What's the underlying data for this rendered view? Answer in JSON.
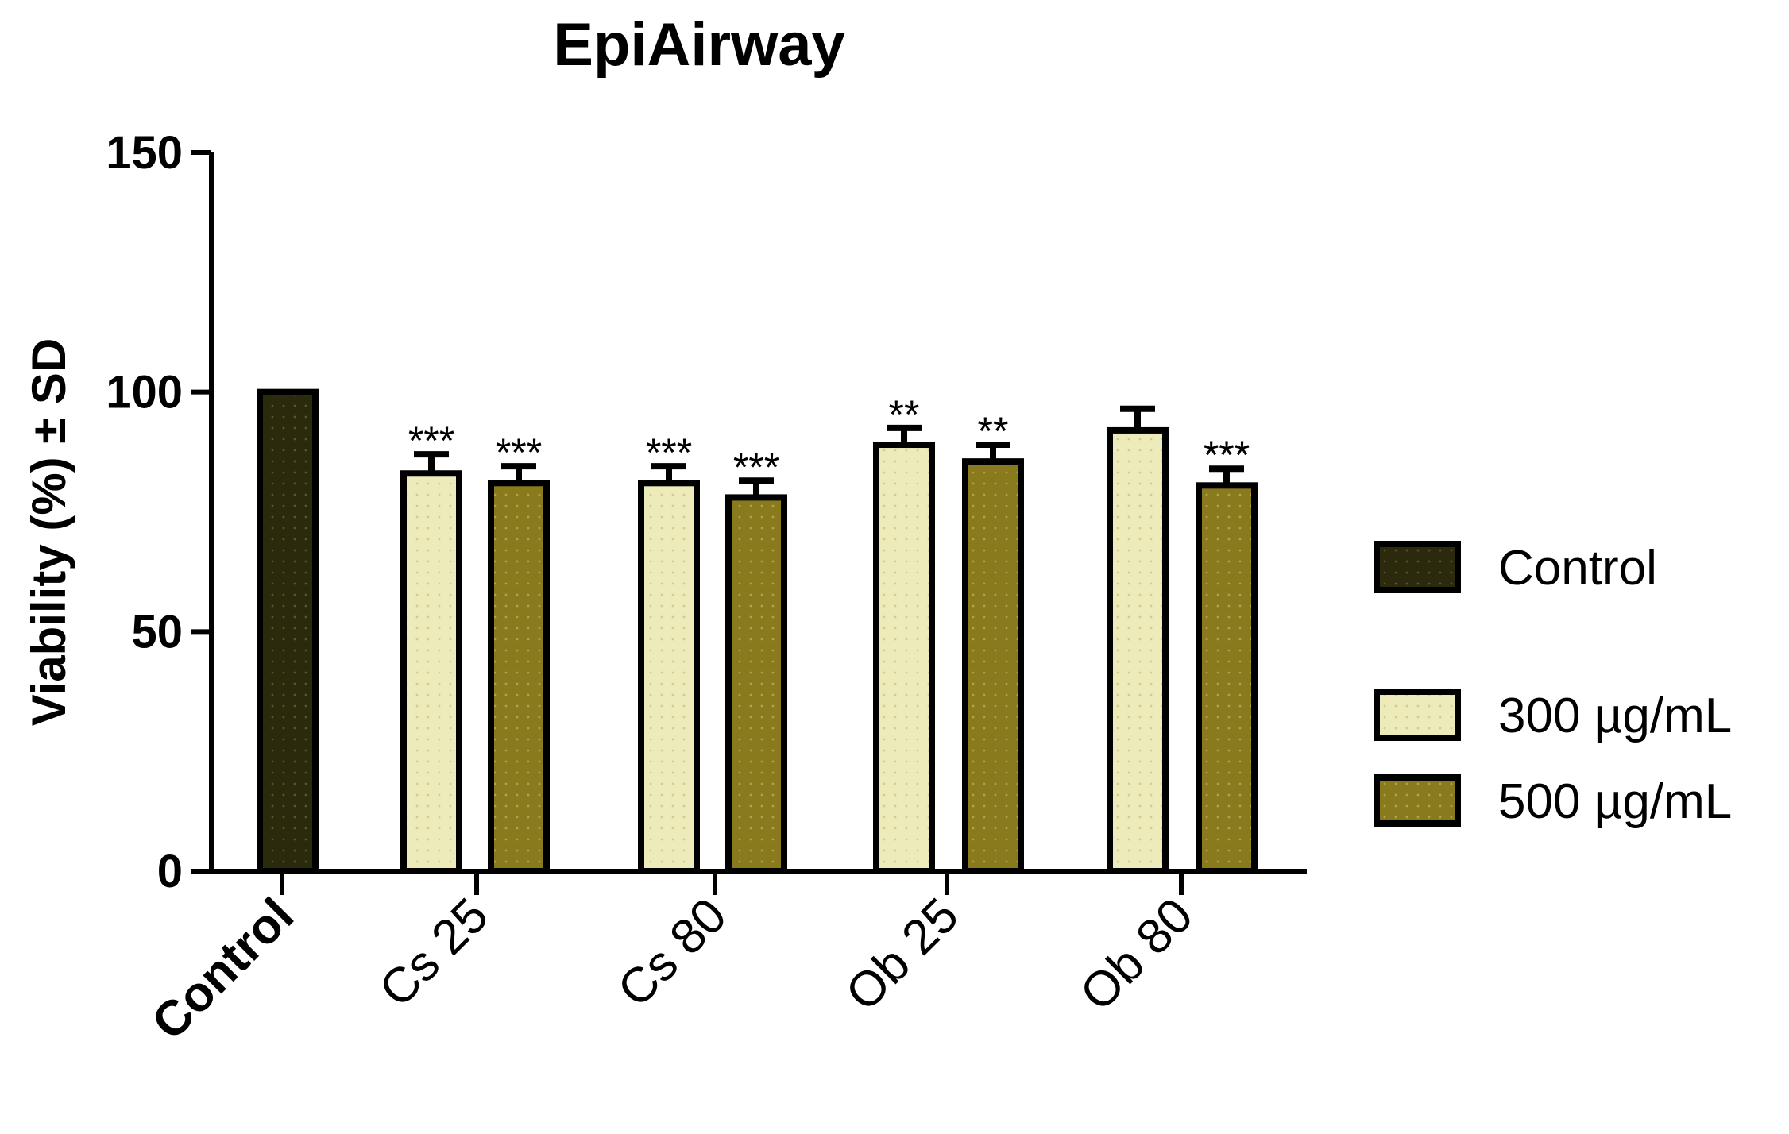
{
  "chart_data": {
    "type": "bar",
    "title": "EpiAirway",
    "ylabel": "Viability (%) ± SD",
    "xlabel": "",
    "ylim": [
      0,
      150
    ],
    "yticks": [
      0,
      50,
      100,
      150
    ],
    "categories": [
      "Control",
      "Cs 25",
      "Cs 80",
      "Ob 25",
      "Ob 80"
    ],
    "series": [
      {
        "name": "Control",
        "color": "#2b2a0c",
        "values": [
          100,
          null,
          null,
          null,
          null
        ],
        "errors": [
          0,
          null,
          null,
          null,
          null
        ]
      },
      {
        "name": "300 µg/mL",
        "color": "#ecebb9",
        "values": [
          null,
          83,
          81,
          89,
          92
        ],
        "errors": [
          null,
          4,
          3.5,
          3.5,
          4.5
        ]
      },
      {
        "name": "500 µg/mL",
        "color": "#8a7a1e",
        "values": [
          null,
          81,
          78,
          85.5,
          80.5
        ],
        "errors": [
          null,
          3.5,
          3.5,
          3.5,
          3.5
        ]
      }
    ],
    "significance": [
      {
        "category": "Cs 25",
        "series": "300 µg/mL",
        "label": "***"
      },
      {
        "category": "Cs 25",
        "series": "500 µg/mL",
        "label": "***"
      },
      {
        "category": "Cs 80",
        "series": "300 µg/mL",
        "label": "***"
      },
      {
        "category": "Cs 80",
        "series": "500 µg/mL",
        "label": "***"
      },
      {
        "category": "Ob 25",
        "series": "300 µg/mL",
        "label": "**"
      },
      {
        "category": "Ob 25",
        "series": "500 µg/mL",
        "label": "**"
      },
      {
        "category": "Ob 80",
        "series": "500 µg/mL",
        "label": "***"
      }
    ],
    "legend_position": "right",
    "grid": false
  }
}
